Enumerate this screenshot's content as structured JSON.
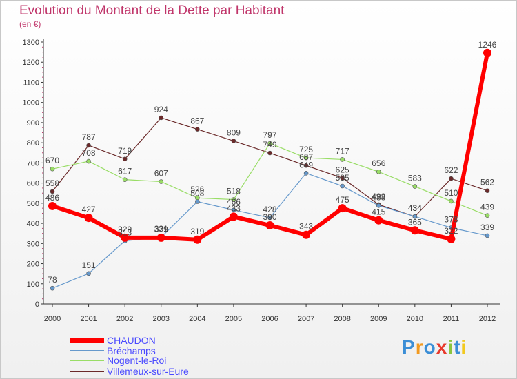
{
  "header": {
    "title": "Evolution du Montant de la Dette par Habitant",
    "subtitle": "(en €)"
  },
  "logo": {
    "text": "Proxiti",
    "colors": [
      "#3b8ed6",
      "#f29a1f",
      "#3b8ed6",
      "#e8392b",
      "#8bc53f",
      "#3b8ed6",
      "#f2c91f"
    ]
  },
  "chart_data": {
    "type": "line",
    "title": "Evolution du Montant de la Dette par Habitant",
    "subtitle": "(en €)",
    "x": [
      "2000",
      "2001",
      "2002",
      "2003",
      "2004",
      "2005",
      "2006",
      "2007",
      "2008",
      "2009",
      "2010",
      "2011",
      "2012"
    ],
    "ylim": [
      0,
      1300
    ],
    "yticks": [
      0,
      100,
      200,
      300,
      400,
      500,
      600,
      700,
      800,
      900,
      1000,
      1100,
      1200,
      1300
    ],
    "grid": false,
    "legend": "bottom-left",
    "series": [
      {
        "name": "Villemeux-sur-Eure",
        "color": "#6b2a2a",
        "width": 1.2,
        "values": [
          558,
          787,
          719,
          924,
          867,
          809,
          749,
          687,
          625,
          493,
          434,
          622,
          562
        ]
      },
      {
        "name": "Nogent-le-Roi",
        "color": "#99dd66",
        "width": 1.2,
        "values": [
          670,
          708,
          617,
          607,
          526,
          518,
          797,
          725,
          717,
          656,
          583,
          510,
          439
        ]
      },
      {
        "name": "Bréchamps",
        "color": "#6699cc",
        "width": 1.2,
        "values": [
          78,
          151,
          313,
          331,
          508,
          466,
          428,
          649,
          585,
          488,
          434,
          378,
          339
        ]
      },
      {
        "name": "CHAUDON",
        "color": "#ff0000",
        "width": 6,
        "values": [
          486,
          427,
          329,
          329,
          319,
          433,
          390,
          343,
          475,
          415,
          365,
          322,
          1246
        ]
      }
    ],
    "point_labels": [
      {
        "series": "Villemeux-sur-Eure",
        "texts": [
          "558",
          "787",
          "719",
          "924",
          "867",
          "809",
          "749",
          "687",
          "625",
          "493",
          "434",
          "622",
          "562"
        ]
      },
      {
        "series": "Nogent-le-Roi",
        "texts": [
          "670",
          "708",
          "617",
          "607",
          "526",
          "518",
          "797",
          "725",
          "717",
          "656",
          "583",
          "510",
          "439"
        ]
      },
      {
        "series": "Bréchamps",
        "texts": [
          "78",
          "151",
          "313",
          "331",
          "508",
          "466",
          "428",
          "649",
          "585",
          "488",
          "434",
          "378",
          "339"
        ]
      },
      {
        "series": "CHAUDON",
        "texts": [
          "486",
          "427",
          "329",
          "329",
          "319",
          "433",
          "390",
          "343",
          "475",
          "415",
          "365",
          "322",
          "1246"
        ]
      }
    ]
  },
  "legend": [
    {
      "name": "CHAUDON",
      "color": "#ff0000"
    },
    {
      "name": "Bréchamps",
      "color": "#6699cc"
    },
    {
      "name": "Nogent-le-Roi",
      "color": "#99dd66"
    },
    {
      "name": "Villemeux-sur-Eure",
      "color": "#6b2a2a"
    }
  ]
}
